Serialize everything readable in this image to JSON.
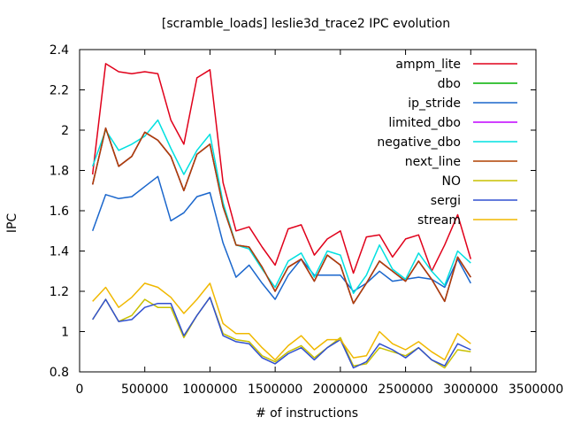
{
  "chart_data": {
    "type": "line",
    "title": "[scramble_loads] leslie3d_trace2 IPC evolution",
    "xlabel": "# of instructions",
    "ylabel": "IPC",
    "xlim": [
      0,
      3500000
    ],
    "ylim": [
      0.8,
      2.4
    ],
    "xticks": [
      0,
      500000,
      1000000,
      1500000,
      2000000,
      2500000,
      3000000,
      3500000
    ],
    "yticks": [
      0.8,
      1.0,
      1.2,
      1.4,
      1.6,
      1.8,
      2.0,
      2.2,
      2.4
    ],
    "xtick_labels": [
      "0",
      "500000",
      "1000000",
      "1500000",
      "2000000",
      "2500000",
      "3000000",
      "3500000"
    ],
    "ytick_labels": [
      "0.8",
      "1",
      "1.2",
      "1.4",
      "1.6",
      "1.8",
      "2",
      "2.2",
      "2.4"
    ],
    "legend_position": "top-right",
    "grid": false,
    "x": [
      100000,
      200000,
      300000,
      400000,
      500000,
      600000,
      700000,
      800000,
      900000,
      1000000,
      1100000,
      1200000,
      1300000,
      1400000,
      1500000,
      1600000,
      1700000,
      1800000,
      1900000,
      2000000,
      2100000,
      2200000,
      2300000,
      2400000,
      2500000,
      2600000,
      2700000,
      2800000,
      2900000,
      3000000
    ],
    "series": [
      {
        "name": "ampm_lite",
        "color": "#e0001a",
        "values": [
          1.78,
          2.33,
          2.29,
          2.28,
          2.29,
          2.28,
          2.05,
          1.93,
          2.26,
          2.3,
          1.74,
          1.5,
          1.52,
          1.42,
          1.33,
          1.51,
          1.53,
          1.38,
          1.46,
          1.5,
          1.29,
          1.47,
          1.48,
          1.37,
          1.46,
          1.48,
          1.3,
          1.43,
          1.58,
          1.36
        ]
      },
      {
        "name": "dbo",
        "color": "#00b000",
        "values": [
          1.73,
          2.01,
          1.82,
          1.87,
          1.99,
          1.95,
          1.87,
          1.7,
          1.88,
          1.93,
          1.62,
          1.43,
          1.42,
          1.32,
          1.2,
          1.32,
          1.36,
          1.25,
          1.38,
          1.33,
          1.14,
          1.24,
          1.35,
          1.3,
          1.25,
          1.35,
          1.26,
          1.15,
          1.37,
          1.27
        ]
      },
      {
        "name": "ip_stride",
        "color": "#1a66cc",
        "values": [
          1.5,
          1.68,
          1.66,
          1.67,
          1.72,
          1.77,
          1.55,
          1.59,
          1.67,
          1.69,
          1.44,
          1.27,
          1.33,
          1.24,
          1.16,
          1.28,
          1.36,
          1.28,
          1.28,
          1.28,
          1.2,
          1.24,
          1.3,
          1.25,
          1.26,
          1.27,
          1.26,
          1.22,
          1.36,
          1.24
        ]
      },
      {
        "name": "limited_dbo",
        "color": "#c000ff",
        "values": [
          1.73,
          2.01,
          1.82,
          1.87,
          1.99,
          1.95,
          1.87,
          1.7,
          1.88,
          1.93,
          1.62,
          1.43,
          1.42,
          1.32,
          1.2,
          1.32,
          1.36,
          1.25,
          1.38,
          1.33,
          1.14,
          1.24,
          1.35,
          1.3,
          1.25,
          1.35,
          1.26,
          1.15,
          1.37,
          1.27
        ]
      },
      {
        "name": "negative_dbo",
        "color": "#00e0e0",
        "values": [
          1.82,
          2.0,
          1.9,
          1.93,
          1.97,
          2.05,
          1.91,
          1.78,
          1.9,
          1.98,
          1.64,
          1.43,
          1.41,
          1.31,
          1.22,
          1.35,
          1.39,
          1.27,
          1.4,
          1.38,
          1.19,
          1.28,
          1.43,
          1.31,
          1.26,
          1.39,
          1.3,
          1.23,
          1.4,
          1.34
        ]
      },
      {
        "name": "next_line",
        "color": "#b04000",
        "values": [
          1.73,
          2.01,
          1.82,
          1.87,
          1.99,
          1.95,
          1.87,
          1.7,
          1.88,
          1.93,
          1.62,
          1.43,
          1.42,
          1.32,
          1.2,
          1.32,
          1.36,
          1.25,
          1.38,
          1.33,
          1.14,
          1.24,
          1.35,
          1.3,
          1.25,
          1.35,
          1.26,
          1.15,
          1.37,
          1.27
        ]
      },
      {
        "name": "NO",
        "color": "#c8c000",
        "values": [
          1.06,
          1.16,
          1.05,
          1.08,
          1.16,
          1.12,
          1.12,
          0.97,
          1.08,
          1.17,
          0.99,
          0.96,
          0.95,
          0.88,
          0.85,
          0.9,
          0.93,
          0.87,
          0.92,
          0.97,
          0.83,
          0.84,
          0.92,
          0.9,
          0.88,
          0.92,
          0.86,
          0.82,
          0.91,
          0.9
        ]
      },
      {
        "name": "sergi",
        "color": "#3050d0",
        "values": [
          1.06,
          1.16,
          1.05,
          1.06,
          1.12,
          1.14,
          1.14,
          0.98,
          1.08,
          1.17,
          0.98,
          0.95,
          0.94,
          0.87,
          0.84,
          0.89,
          0.92,
          0.86,
          0.92,
          0.96,
          0.82,
          0.85,
          0.94,
          0.91,
          0.87,
          0.92,
          0.86,
          0.83,
          0.94,
          0.91
        ]
      },
      {
        "name": "stream",
        "color": "#f0b800",
        "values": [
          1.15,
          1.22,
          1.12,
          1.17,
          1.24,
          1.22,
          1.17,
          1.09,
          1.16,
          1.24,
          1.04,
          0.99,
          0.99,
          0.92,
          0.86,
          0.93,
          0.98,
          0.91,
          0.96,
          0.96,
          0.87,
          0.88,
          1.0,
          0.94,
          0.91,
          0.95,
          0.9,
          0.86,
          0.99,
          0.94
        ]
      }
    ]
  }
}
